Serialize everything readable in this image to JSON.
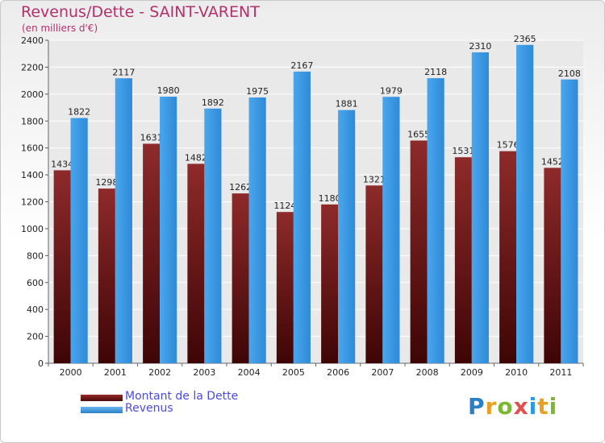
{
  "header": {
    "title": "Revenus/Dette - SAINT-VARENT",
    "subtitle": "(en milliers d'€)"
  },
  "colors": {
    "title": "#b3306e",
    "dette": "#7a1e1e",
    "revenus": "#3a9be6",
    "legend_text": "#4a4ae0"
  },
  "chart_data": {
    "type": "bar",
    "categories": [
      "2000",
      "2001",
      "2002",
      "2003",
      "2004",
      "2005",
      "2006",
      "2007",
      "2008",
      "2009",
      "2010",
      "2011"
    ],
    "series": [
      {
        "name": "Montant de la Dette",
        "values": [
          1434,
          1298,
          1631,
          1482,
          1262,
          1124,
          1180,
          1321,
          1655,
          1531,
          1576,
          1452
        ]
      },
      {
        "name": "Revenus",
        "values": [
          1822,
          2117,
          1980,
          1892,
          1975,
          2167,
          1881,
          1979,
          2118,
          2310,
          2365,
          2108
        ]
      }
    ],
    "ylim": [
      0,
      2400
    ],
    "yticks": [
      0,
      200,
      400,
      600,
      800,
      1000,
      1200,
      1400,
      1600,
      1800,
      2000,
      2200,
      2400
    ],
    "grid": true,
    "legend": "bottom-left"
  },
  "legend": {
    "dette_label": "Montant de la Dette",
    "revenus_label": "Revenus"
  },
  "logo": {
    "text": "Proxiti"
  }
}
